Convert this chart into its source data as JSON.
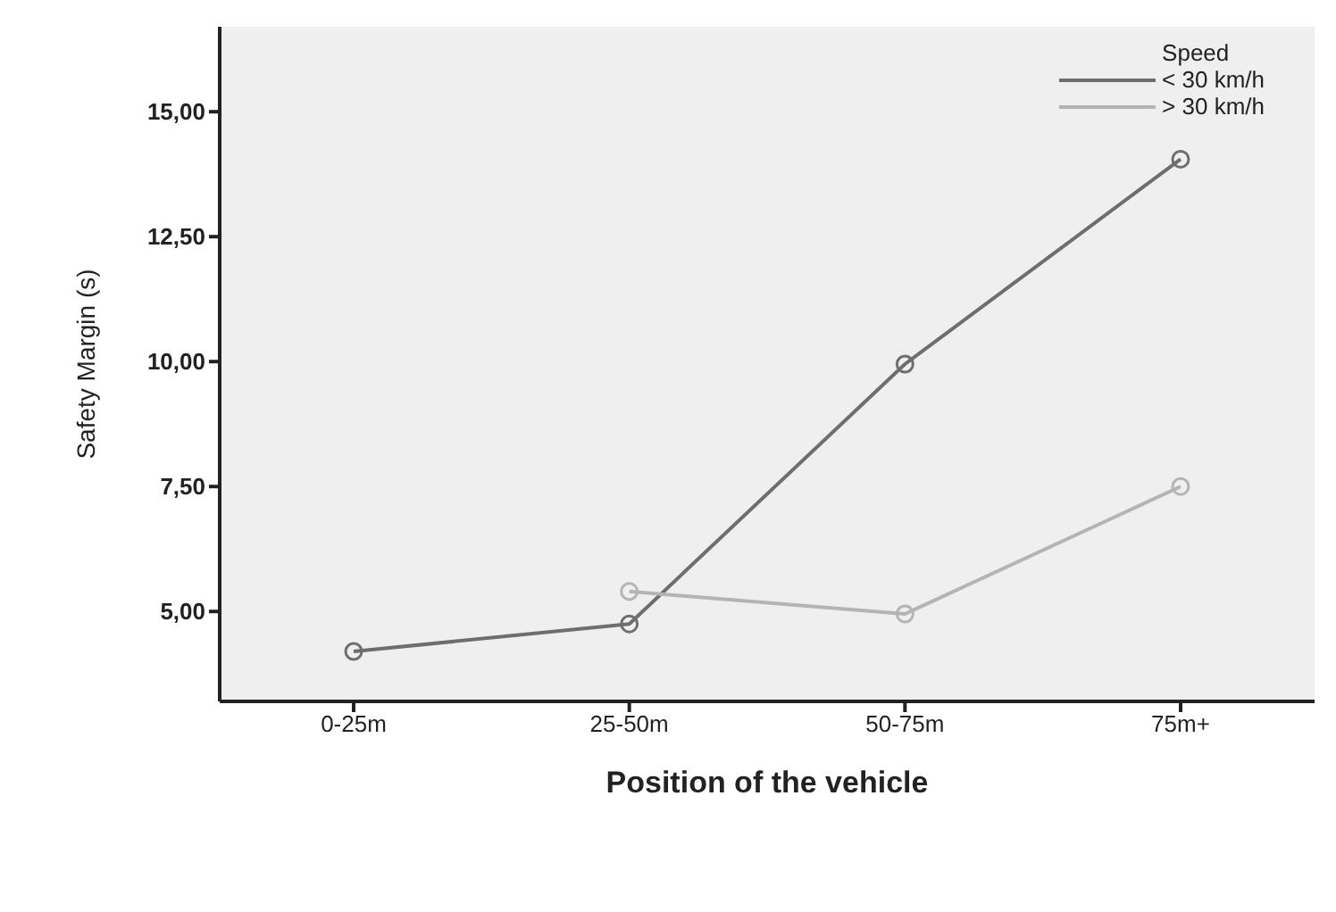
{
  "chart_data": {
    "type": "line",
    "xlabel": "Position of the vehicle",
    "ylabel": "Safety Margin (s)",
    "legend_title": "Speed",
    "categories": [
      "0-25m",
      "25-50m",
      "50-75m",
      "75m+"
    ],
    "series": [
      {
        "name": "< 30 km/h",
        "color": "#6e6e6e",
        "values": [
          4.2,
          4.75,
          9.95,
          14.05
        ]
      },
      {
        "name": "> 30 km/h",
        "color": "#b4b4b4",
        "values": [
          null,
          5.4,
          4.95,
          7.5
        ]
      }
    ],
    "ylim": [
      3.2,
      16.7
    ],
    "yticks": [
      {
        "value": 5,
        "label": "5,00"
      },
      {
        "value": 7.5,
        "label": "7,50"
      },
      {
        "value": 10,
        "label": "10,00"
      },
      {
        "value": 12.5,
        "label": "12,50"
      },
      {
        "value": 15,
        "label": "15,00"
      }
    ],
    "legend": "top right",
    "marker": "circle",
    "line_style": "solid"
  }
}
